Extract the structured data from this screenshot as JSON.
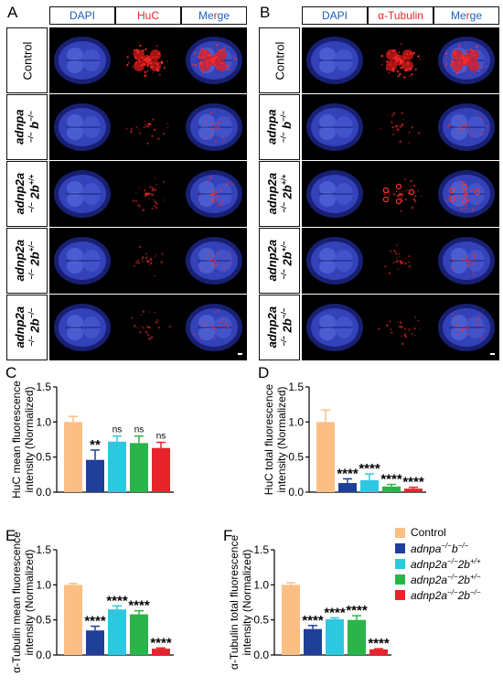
{
  "panels": {
    "A": {
      "letter": "A",
      "headers": [
        "DAPI",
        "HuC",
        "Merge"
      ],
      "rows": [
        {
          "parts": [
            "Control"
          ]
        },
        {
          "parts": [
            "adnpa",
            "−/− b−/−"
          ]
        },
        {
          "parts": [
            "adnp2a",
            "−/− 2b+/+"
          ]
        },
        {
          "parts": [
            "adnp2a",
            "−/− 2b+/−"
          ]
        },
        {
          "parts": [
            "adnp2a",
            "−/− 2b−/−"
          ]
        }
      ]
    },
    "B": {
      "letter": "B",
      "headers": [
        "DAPI",
        "α-Tubulin",
        "Merge"
      ],
      "rows": [
        {
          "parts": [
            "Control"
          ]
        },
        {
          "parts": [
            "adnpa",
            "−/− b−/−"
          ]
        },
        {
          "parts": [
            "adnp2a",
            "−/− 2b+/+"
          ]
        },
        {
          "parts": [
            "adnp2a",
            "−/− 2b+/−"
          ]
        },
        {
          "parts": [
            "adnp2a",
            "−/− 2b−/−"
          ]
        }
      ]
    }
  },
  "colors": {
    "header_blue": "#1f5fbf",
    "header_red": "#e8252b",
    "dapi": "#3b49c8",
    "signal_red": "#ff2020"
  },
  "legend": [
    {
      "label": "Control",
      "color": "#fbbf85"
    },
    {
      "label": "adnpa−/−b−/−",
      "color": "#1f3f99"
    },
    {
      "label": "adnp2a−/−2b+/+",
      "color": "#2ec7e0"
    },
    {
      "label": "adnp2a−/−2b+/−",
      "color": "#2bb44a"
    },
    {
      "label": "adnp2a−/−2b−/−",
      "color": "#e8232b"
    }
  ],
  "chart_data": [
    {
      "panel": "C",
      "type": "bar",
      "ylabel": "HuC mean fluorescence intensity (Normalized)",
      "ylim": [
        0,
        1.5
      ],
      "yticks": [
        "0.0",
        "0.5",
        "1.0",
        "1.5"
      ],
      "categories": [
        "Control",
        "adnpa−/−b−/−",
        "adnp2a−/−2b+/+",
        "adnp2a−/−2b+/−",
        "adnp2a−/−2b−/−"
      ],
      "values": [
        1.0,
        0.46,
        0.72,
        0.7,
        0.63
      ],
      "errors": [
        0.08,
        0.14,
        0.08,
        0.1,
        0.08
      ],
      "significance": [
        "",
        "**",
        "ns",
        "ns",
        "ns"
      ]
    },
    {
      "panel": "D",
      "type": "bar",
      "ylabel": "HuC total fluorescence intensity (Normalized)",
      "ylim": [
        0,
        1.5
      ],
      "yticks": [
        "0.0",
        "0.5",
        "1.0",
        "1.5"
      ],
      "categories": [
        "Control",
        "adnpa−/−b−/−",
        "adnp2a−/−2b+/+",
        "adnp2a−/−2b+/−",
        "adnp2a−/−2b−/−"
      ],
      "values": [
        1.0,
        0.13,
        0.17,
        0.08,
        0.05
      ],
      "errors": [
        0.17,
        0.06,
        0.09,
        0.03,
        0.02
      ],
      "significance": [
        "",
        "****",
        "****",
        "****",
        "****"
      ]
    },
    {
      "panel": "E",
      "type": "bar",
      "ylabel": "α-Tubulin mean fluorescence intensity (Normalized)",
      "ylim": [
        0,
        1.5
      ],
      "yticks": [
        "0.0",
        "0.5",
        "1.0",
        "1.5"
      ],
      "categories": [
        "Control",
        "adnpa−/−b−/−",
        "adnp2a−/−2b+/+",
        "adnp2a−/−2b+/−",
        "adnp2a−/−2b−/−"
      ],
      "values": [
        1.0,
        0.35,
        0.65,
        0.58,
        0.09
      ],
      "errors": [
        0.02,
        0.06,
        0.05,
        0.05,
        0.01
      ],
      "significance": [
        "",
        "****",
        "****",
        "****",
        "****"
      ]
    },
    {
      "panel": "F",
      "type": "bar",
      "ylabel": "α-Tubulin total fluorescence intensity (Normalized)",
      "ylim": [
        0,
        1.5
      ],
      "yticks": [
        "0.0",
        "0.5",
        "1.0",
        "1.5"
      ],
      "categories": [
        "Control",
        "adnpa−/−b−/−",
        "adnp2a−/−2b+/+",
        "adnp2a−/−2b+/−",
        "adnp2a−/−2b−/−"
      ],
      "values": [
        1.0,
        0.37,
        0.51,
        0.5,
        0.08
      ],
      "errors": [
        0.03,
        0.05,
        0.02,
        0.06,
        0.01
      ],
      "significance": [
        "",
        "****",
        "****",
        "****",
        "****"
      ]
    }
  ]
}
